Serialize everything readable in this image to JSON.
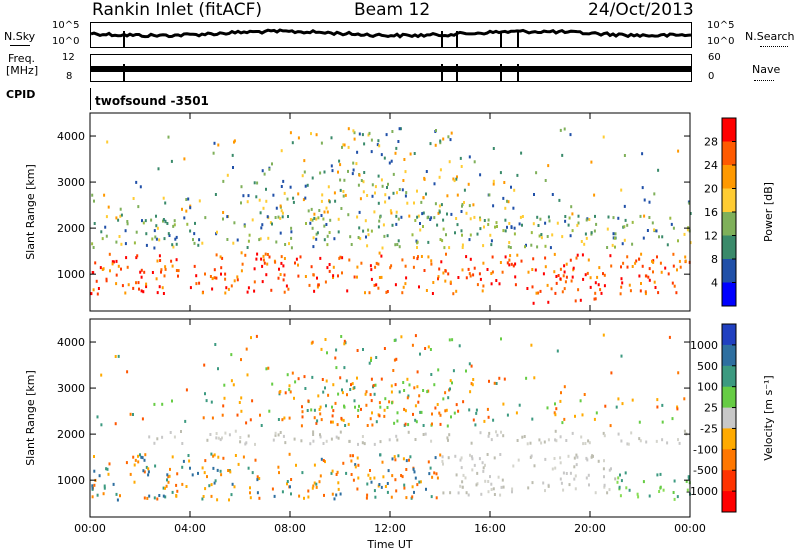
{
  "header": {
    "station": "Rankin Inlet (fitACF)",
    "beam": "Beam 12",
    "date": "24/Oct/2013"
  },
  "aux": {
    "nsky_label": "N.Sky",
    "nsearch_label": "N.Search",
    "freq_label": "Freq.",
    "freq_unit": "[MHz]",
    "nave_label": "Nave",
    "cpid_label": "CPID",
    "cpid_value": "twofsound -3501",
    "noise_ticks_left": [
      "10^5",
      "10^0"
    ],
    "noise_ticks_right": [
      "10^5",
      "10^0"
    ],
    "freq_ticks": [
      "12",
      "8"
    ],
    "nave_ticks": [
      "60",
      "0"
    ]
  },
  "chart_data": [
    {
      "type": "heatmap",
      "name": "power",
      "ylabel": "Slant Range [km]",
      "xlabel": "",
      "ylim": [
        200,
        4500
      ],
      "yticks": [
        1000,
        2000,
        3000,
        4000
      ],
      "xlim": [
        0,
        24
      ],
      "xticks": [
        "00:00",
        "04:00",
        "08:00",
        "12:00",
        "16:00",
        "20:00",
        "00:00"
      ],
      "colorbar": {
        "label": "Power [dB]",
        "ticks": [
          "28",
          "24",
          "20",
          "16",
          "12",
          "8",
          "4"
        ],
        "colors": [
          "#ff0000",
          "#ff5a00",
          "#ff9900",
          "#ffcc33",
          "#7fb05a",
          "#3a8a6a",
          "#2050a8",
          "#0000ff"
        ]
      },
      "bands": [
        {
          "range_start_km": 600,
          "range_end_km": 1500,
          "t_start_h": 0,
          "t_end_h": 24,
          "dominant": "red-orange"
        },
        {
          "range_start_km": 1600,
          "range_end_km": 2300,
          "t_start_h": 0,
          "t_end_h": 24,
          "dominant": "green"
        },
        {
          "range_start_km": 400,
          "range_end_km": 500,
          "t_start_h": 17.5,
          "t_end_h": 21,
          "dominant": "red"
        }
      ]
    },
    {
      "type": "heatmap",
      "name": "velocity",
      "ylabel": "Slant Range [km]",
      "xlabel": "Time UT",
      "ylim": [
        200,
        4500
      ],
      "yticks": [
        1000,
        2000,
        3000,
        4000
      ],
      "xlim": [
        0,
        24
      ],
      "xticks": [
        "00:00",
        "04:00",
        "08:00",
        "12:00",
        "16:00",
        "20:00",
        "00:00"
      ],
      "colorbar": {
        "label": "Velocity [m s⁻¹]",
        "ticks": [
          "1000",
          "500",
          "100",
          "25",
          "-25",
          "-100",
          "-500",
          "-1000"
        ],
        "colors": [
          "#2040c0",
          "#2e6fa0",
          "#3c9a80",
          "#66cc44",
          "#c8c8c8",
          "#ffaa00",
          "#ff7700",
          "#ff3300",
          "#ff0000"
        ]
      },
      "bands": [
        {
          "range_start_km": 600,
          "range_end_km": 1600,
          "t_start_h": 0,
          "t_end_h": 14,
          "dominant": "orange"
        },
        {
          "range_start_km": 700,
          "range_end_km": 1600,
          "t_start_h": 14,
          "t_end_h": 21,
          "dominant": "grey"
        },
        {
          "range_start_km": 600,
          "range_end_km": 1200,
          "t_start_h": 21,
          "t_end_h": 24,
          "dominant": "green"
        },
        {
          "range_start_km": 1800,
          "range_end_km": 2100,
          "t_start_h": 2,
          "t_end_h": 24,
          "dominant": "grey"
        }
      ]
    }
  ]
}
